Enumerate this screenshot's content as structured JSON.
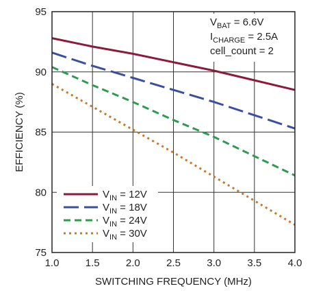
{
  "chart_data": {
    "type": "line",
    "title": "",
    "xlabel": "SWITCHING FREQUENCY (MHz)",
    "ylabel": "EFFICIENCY (%)",
    "xlim": [
      1.0,
      4.0
    ],
    "ylim": [
      75,
      95
    ],
    "xticks": [
      1.0,
      1.5,
      2.0,
      2.5,
      3.0,
      3.5,
      4.0
    ],
    "xtick_labels": [
      "1.0",
      "1.5",
      "2.0",
      "2.5",
      "3.0",
      "3.5",
      "4.0"
    ],
    "yticks": [
      75,
      80,
      85,
      90,
      95
    ],
    "ytick_labels": [
      "75",
      "80",
      "85",
      "90",
      "95"
    ],
    "grid": true,
    "legend_position": "bottom-left",
    "annotations": {
      "vbat": {
        "main": "V",
        "sub": "BAT",
        "rest": " = 6.6V"
      },
      "icharge": {
        "main": "I",
        "sub": "CHARGE",
        "rest": " = 2.5A"
      },
      "cell_count": "cell_count = 2"
    },
    "series": [
      {
        "name": "VIN = 12V",
        "label_main": "V",
        "label_sub": "IN",
        "label_rest": " = 12V",
        "color": "#8b1a3c",
        "dash": "solid",
        "x": [
          1.0,
          1.5,
          2.0,
          2.5,
          3.0,
          3.5,
          4.0
        ],
        "y": [
          92.8,
          92.1,
          91.5,
          90.8,
          90.1,
          89.3,
          88.5
        ]
      },
      {
        "name": "VIN = 18V",
        "label_main": "V",
        "label_sub": "IN",
        "label_rest": " = 18V",
        "color": "#3a4fa0",
        "dash": "longdash",
        "x": [
          1.0,
          1.5,
          2.0,
          2.5,
          3.0,
          3.5,
          4.0
        ],
        "y": [
          91.6,
          90.5,
          89.5,
          88.5,
          87.5,
          86.4,
          85.3
        ]
      },
      {
        "name": "VIN = 24V",
        "label_main": "V",
        "label_sub": "IN",
        "label_rest": " = 24V",
        "color": "#2e9b4e",
        "dash": "dash",
        "x": [
          1.0,
          1.5,
          2.0,
          2.5,
          3.0,
          3.5,
          4.0
        ],
        "y": [
          90.4,
          88.9,
          87.5,
          86.0,
          84.6,
          83.0,
          81.4
        ]
      },
      {
        "name": "VIN = 30V",
        "label_main": "V",
        "label_sub": "IN",
        "label_rest": " = 30V",
        "color": "#c8782c",
        "dash": "dot",
        "x": [
          1.0,
          1.5,
          2.0,
          2.5,
          3.0,
          3.5,
          4.0
        ],
        "y": [
          89.0,
          87.1,
          85.2,
          83.3,
          81.3,
          79.3,
          77.3
        ]
      }
    ]
  }
}
